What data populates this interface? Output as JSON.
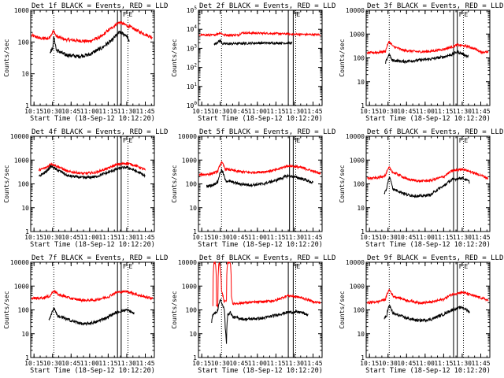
{
  "figure_title": "",
  "colors": {
    "events": "#000000",
    "lld": "#ff0000"
  },
  "chart_data": [
    {
      "type": "line",
      "title": "Det 1f BLACK = Events, RED = LLD",
      "xlabel": "Start Time (18-Sep-12 10:12:20)",
      "ylabel": "Counts/sec",
      "x_ticks": [
        "10:15",
        "10:30",
        "10:45",
        "11:00",
        "11:15",
        "11:30",
        "11:45"
      ],
      "xlim": [
        "10:12:20",
        "11:52:20"
      ],
      "y_ticks": [
        "1",
        "10",
        "100",
        "1000"
      ],
      "ylim": [
        1,
        1000
      ],
      "y_scale": "log",
      "markers": {
        "dotted": [
          "10:31:00",
          "11:31:00"
        ],
        "solid": [
          "11:22:30",
          "11:25:30"
        ],
        "flags": [
          "F",
          "E"
        ]
      },
      "series": [
        {
          "color": "red",
          "x": [
            "10:13",
            "10:20",
            "10:27",
            "10:31",
            "10:33",
            "10:40",
            "10:50",
            "11:00",
            "11:10",
            "11:18",
            "11:24",
            "11:30",
            "11:40",
            "11:47",
            "11:51"
          ],
          "values": [
            160,
            130,
            130,
            220,
            150,
            120,
            110,
            105,
            150,
            280,
            420,
            330,
            210,
            160,
            140
          ]
        },
        {
          "color": "black",
          "x": [
            "10:28",
            "10:30",
            "10:31",
            "10:33",
            "10:40",
            "10:50",
            "11:00",
            "11:10",
            "11:18",
            "11:24",
            "11:30",
            "11:32"
          ],
          "values": [
            50,
            60,
            140,
            55,
            40,
            35,
            40,
            65,
            110,
            200,
            160,
            95
          ]
        }
      ]
    },
    {
      "type": "line",
      "title": "Det 2f BLACK = Events, RED = LLD",
      "xlabel": "Start Time (18-Sep-12 10:12:20)",
      "ylabel": "Counts/sec",
      "x_ticks": [
        "10:15",
        "10:30",
        "10:45",
        "11:00",
        "11:15",
        "11:30",
        "11:45"
      ],
      "xlim": [
        "10:12:20",
        "11:52:20"
      ],
      "y_ticks": [
        "10^0",
        "10^1",
        "10^2",
        "10^3",
        "10^4",
        "10^5"
      ],
      "ylim": [
        1,
        100000
      ],
      "y_scale": "log",
      "markers": {
        "dotted": [
          "10:31:00",
          "11:31:00"
        ],
        "solid": [
          "11:25:00",
          "11:29:00"
        ],
        "flags": [
          "F",
          "E"
        ]
      },
      "series": [
        {
          "color": "red",
          "x": [
            "10:13",
            "10:25",
            "10:30",
            "10:33",
            "10:45",
            "10:47",
            "11:00",
            "11:15",
            "11:30",
            "11:51"
          ],
          "values": [
            5000,
            5000,
            6500,
            5000,
            5000,
            6500,
            6300,
            6000,
            5500,
            5200
          ]
        },
        {
          "color": "black",
          "x": [
            "10:25",
            "10:30",
            "10:32",
            "10:45",
            "11:00",
            "11:15",
            "11:28"
          ],
          "values": [
            1600,
            2500,
            1700,
            1800,
            1900,
            1900,
            1900
          ]
        }
      ]
    },
    {
      "type": "line",
      "title": "Det 3f BLACK = Events, RED = LLD",
      "xlabel": "Start Time (18-Sep-12 10:12:20)",
      "ylabel": "Counts/sec",
      "x_ticks": [
        "10:15",
        "10:30",
        "10:45",
        "11:00",
        "11:15",
        "11:30",
        "11:45"
      ],
      "xlim": [
        "10:12:20",
        "11:52:20"
      ],
      "y_ticks": [
        "1",
        "10",
        "100",
        "1000",
        "10000"
      ],
      "ylim": [
        1,
        10000
      ],
      "y_scale": "log",
      "markers": {
        "dotted": [
          "10:31:00",
          "11:31:00"
        ],
        "solid": [
          "11:23:00",
          "11:26:00"
        ],
        "flags": [
          "F",
          "E"
        ]
      },
      "series": [
        {
          "color": "red",
          "x": [
            "10:13",
            "10:22",
            "10:28",
            "10:31",
            "10:34",
            "10:42",
            "10:55",
            "11:05",
            "11:15",
            "11:22",
            "11:26",
            "11:35",
            "11:45",
            "11:51"
          ],
          "values": [
            160,
            170,
            190,
            480,
            300,
            210,
            180,
            190,
            230,
            290,
            350,
            300,
            180,
            170
          ]
        },
        {
          "color": "black",
          "x": [
            "10:28",
            "10:31",
            "10:33",
            "10:42",
            "10:55",
            "11:05",
            "11:15",
            "11:22",
            "11:26",
            "11:35"
          ],
          "values": [
            60,
            140,
            80,
            70,
            80,
            90,
            110,
            140,
            180,
            110
          ]
        }
      ]
    },
    {
      "type": "line",
      "title": "Det 4f BLACK = Events, RED = LLD",
      "xlabel": "Start Time (18-Sep-12 10:12:20)",
      "ylabel": "Counts/sec",
      "x_ticks": [
        "10:15",
        "10:30",
        "10:45",
        "11:00",
        "11:15",
        "11:30",
        "11:45"
      ],
      "xlim": [
        "10:12:20",
        "11:52:20"
      ],
      "y_ticks": [
        "1",
        "10",
        "100",
        "1000",
        "10000"
      ],
      "ylim": [
        1,
        10000
      ],
      "y_scale": "log",
      "markers": {
        "dotted": [
          "10:31:00",
          "11:31:00"
        ],
        "solid": [
          "11:22:30",
          "11:25:30"
        ],
        "flags": [
          "F",
          "E"
        ]
      },
      "series": [
        {
          "color": "red",
          "x": [
            "10:19",
            "10:25",
            "10:29",
            "10:33",
            "10:42",
            "10:55",
            "11:05",
            "11:15",
            "11:22",
            "11:30",
            "11:38",
            "11:45"
          ],
          "values": [
            380,
            480,
            700,
            560,
            330,
            270,
            300,
            450,
            650,
            740,
            560,
            380
          ]
        },
        {
          "color": "black",
          "x": [
            "10:19",
            "10:25",
            "10:29",
            "10:33",
            "10:42",
            "10:55",
            "11:05",
            "11:15",
            "11:22",
            "11:30",
            "11:38",
            "11:45"
          ],
          "values": [
            200,
            330,
            550,
            400,
            220,
            180,
            200,
            300,
            420,
            500,
            330,
            210
          ]
        }
      ]
    },
    {
      "type": "line",
      "title": "Det 5f BLACK = Events, RED = LLD",
      "xlabel": "Start Time (18-Sep-12 10:12:20)",
      "ylabel": "Counts/sec",
      "x_ticks": [
        "10:15",
        "10:30",
        "10:45",
        "11:00",
        "11:15",
        "11:30",
        "11:45"
      ],
      "xlim": [
        "10:12:20",
        "11:52:20"
      ],
      "y_ticks": [
        "1",
        "10",
        "100",
        "1000",
        "10000"
      ],
      "ylim": [
        1,
        10000
      ],
      "y_scale": "log",
      "markers": {
        "dotted": [
          "10:31:00",
          "11:31:00"
        ],
        "solid": [
          "11:26:00",
          "11:29:00"
        ],
        "flags": [
          "F",
          "E"
        ]
      },
      "series": [
        {
          "color": "red",
          "x": [
            "10:13",
            "10:22",
            "10:28",
            "10:31",
            "10:34",
            "10:45",
            "10:55",
            "11:05",
            "11:15",
            "11:25",
            "11:35",
            "11:45",
            "11:51"
          ],
          "values": [
            240,
            260,
            330,
            800,
            420,
            330,
            300,
            320,
            380,
            580,
            490,
            340,
            270
          ]
        },
        {
          "color": "black",
          "x": [
            "10:19",
            "10:24",
            "10:28",
            "10:31",
            "10:34",
            "10:45",
            "10:55",
            "11:05",
            "11:15",
            "11:25",
            "11:35",
            "11:45"
          ],
          "values": [
            80,
            90,
            120,
            380,
            140,
            100,
            90,
            100,
            140,
            220,
            170,
            110
          ]
        }
      ]
    },
    {
      "type": "line",
      "title": "Det 6f BLACK = Events, RED = LLD",
      "xlabel": "Start Time (18-Sep-12 10:12:20)",
      "ylabel": "Counts/sec",
      "x_ticks": [
        "10:15",
        "10:30",
        "10:45",
        "11:00",
        "11:15",
        "11:30",
        "11:45"
      ],
      "xlim": [
        "10:12:20",
        "11:52:20"
      ],
      "y_ticks": [
        "1",
        "10",
        "100",
        "1000",
        "10000"
      ],
      "ylim": [
        1,
        10000
      ],
      "y_scale": "log",
      "markers": {
        "dotted": [
          "10:31:00",
          "11:31:00"
        ],
        "solid": [
          "11:23:00",
          "11:26:00"
        ],
        "flags": [
          "F",
          "E"
        ]
      },
      "series": [
        {
          "color": "red",
          "x": [
            "10:13",
            "10:22",
            "10:28",
            "10:31",
            "10:34",
            "10:45",
            "10:55",
            "11:05",
            "11:15",
            "11:22",
            "11:30",
            "11:40",
            "11:51"
          ],
          "values": [
            170,
            180,
            230,
            480,
            300,
            160,
            130,
            140,
            200,
            350,
            420,
            280,
            170
          ]
        },
        {
          "color": "black",
          "x": [
            "10:27",
            "10:29",
            "10:31",
            "10:34",
            "10:45",
            "10:55",
            "11:05",
            "11:15",
            "11:22",
            "11:30",
            "11:36"
          ],
          "values": [
            40,
            60,
            190,
            60,
            35,
            30,
            35,
            80,
            150,
            180,
            120
          ]
        }
      ]
    },
    {
      "type": "line",
      "title": "Det 7f BLACK = Events, RED = LLD",
      "xlabel": "Start Time (18-Sep-12 10:12:20)",
      "ylabel": "Counts/sec",
      "x_ticks": [
        "10:15",
        "10:30",
        "10:45",
        "11:00",
        "11:15",
        "11:30",
        "11:45"
      ],
      "xlim": [
        "10:12:20",
        "11:52:20"
      ],
      "y_ticks": [
        "1",
        "10",
        "100",
        "1000",
        "10000"
      ],
      "ylim": [
        1,
        10000
      ],
      "y_scale": "log",
      "markers": {
        "dotted": [
          "10:31:00",
          "11:31:00"
        ],
        "solid": [
          "11:22:30",
          "11:25:30"
        ],
        "flags": [
          "F",
          "E"
        ]
      },
      "series": [
        {
          "color": "red",
          "x": [
            "10:13",
            "10:22",
            "10:28",
            "10:31",
            "10:34",
            "10:45",
            "10:55",
            "11:05",
            "11:15",
            "11:22",
            "11:30",
            "11:40",
            "11:51"
          ],
          "values": [
            300,
            320,
            380,
            650,
            450,
            300,
            250,
            260,
            350,
            550,
            600,
            400,
            300
          ]
        },
        {
          "color": "black",
          "x": [
            "10:27",
            "10:29",
            "10:31",
            "10:34",
            "10:45",
            "10:55",
            "11:05",
            "11:15",
            "11:22",
            "11:30",
            "11:36"
          ],
          "values": [
            40,
            60,
            120,
            55,
            35,
            25,
            30,
            50,
            80,
            100,
            70
          ]
        }
      ]
    },
    {
      "type": "line",
      "title": "Det 8f BLACK = Events, RED = LLD",
      "xlabel": "Start Time (18-Sep-12 10:12:20)",
      "ylabel": "Counts/sec",
      "x_ticks": [
        "10:15",
        "10:30",
        "10:45",
        "11:00",
        "11:15",
        "11:30",
        "11:45"
      ],
      "xlim": [
        "10:12:20",
        "11:52:20"
      ],
      "y_ticks": [
        "1",
        "10",
        "100",
        "1000",
        "10000"
      ],
      "ylim": [
        1,
        10000
      ],
      "y_scale": "log",
      "markers": {
        "dotted": [
          "10:31:00",
          "11:31:00"
        ],
        "solid": [
          "11:25:00",
          "11:29:00"
        ],
        "flags": [
          "F",
          "E"
        ]
      },
      "series": [
        {
          "color": "red",
          "x": [
            "10:24",
            "10:25",
            "10:26",
            "10:27",
            "10:28",
            "10:29",
            "10:31",
            "10:33",
            "10:35",
            "10:36",
            "10:37",
            "10:38",
            "10:39",
            "10:40",
            "10:50",
            "11:05",
            "11:15",
            "11:25",
            "11:35",
            "11:45",
            "11:51"
          ],
          "values": [
            150,
            10000,
            10000,
            150,
            140,
            10000,
            600,
            230,
            230,
            10000,
            10000,
            10000,
            400,
            180,
            200,
            220,
            250,
            400,
            330,
            220,
            200
          ]
        },
        {
          "color": "black",
          "x": [
            "10:23",
            "10:24",
            "10:26",
            "10:28",
            "10:29",
            "10:30",
            "10:31",
            "10:33",
            "10:34",
            "10:35",
            "10:36",
            "10:38",
            "10:40",
            "10:50",
            "11:05",
            "11:15",
            "11:25",
            "11:35",
            "11:41"
          ],
          "values": [
            30,
            60,
            80,
            90,
            200,
            280,
            180,
            120,
            15,
            4,
            60,
            80,
            50,
            40,
            45,
            60,
            80,
            80,
            60
          ]
        }
      ]
    },
    {
      "type": "line",
      "title": "Det 9f BLACK = Events, RED = LLD",
      "xlabel": "Start Time (18-Sep-12 10:12:20)",
      "ylabel": "Counts/sec",
      "x_ticks": [
        "10:15",
        "10:30",
        "10:45",
        "11:00",
        "11:15",
        "11:30",
        "11:45"
      ],
      "xlim": [
        "10:12:20",
        "11:52:20"
      ],
      "y_ticks": [
        "1",
        "10",
        "100",
        "1000",
        "10000"
      ],
      "ylim": [
        1,
        10000
      ],
      "y_scale": "log",
      "markers": {
        "dotted": [
          "10:31:00",
          "11:31:00"
        ],
        "solid": [
          "11:23:00",
          "11:26:00"
        ],
        "flags": [
          "F",
          "E"
        ]
      },
      "series": [
        {
          "color": "red",
          "x": [
            "10:13",
            "10:22",
            "10:28",
            "10:31",
            "10:34",
            "10:45",
            "10:55",
            "11:05",
            "11:15",
            "11:22",
            "11:30",
            "11:40",
            "11:51"
          ],
          "values": [
            200,
            220,
            280,
            700,
            380,
            250,
            200,
            210,
            280,
            450,
            550,
            380,
            250
          ]
        },
        {
          "color": "black",
          "x": [
            "10:27",
            "10:29",
            "10:31",
            "10:34",
            "10:45",
            "10:55",
            "11:05",
            "11:15",
            "11:22",
            "11:30",
            "11:36"
          ],
          "values": [
            40,
            60,
            150,
            70,
            45,
            35,
            40,
            65,
            100,
            130,
            80
          ]
        }
      ]
    }
  ]
}
